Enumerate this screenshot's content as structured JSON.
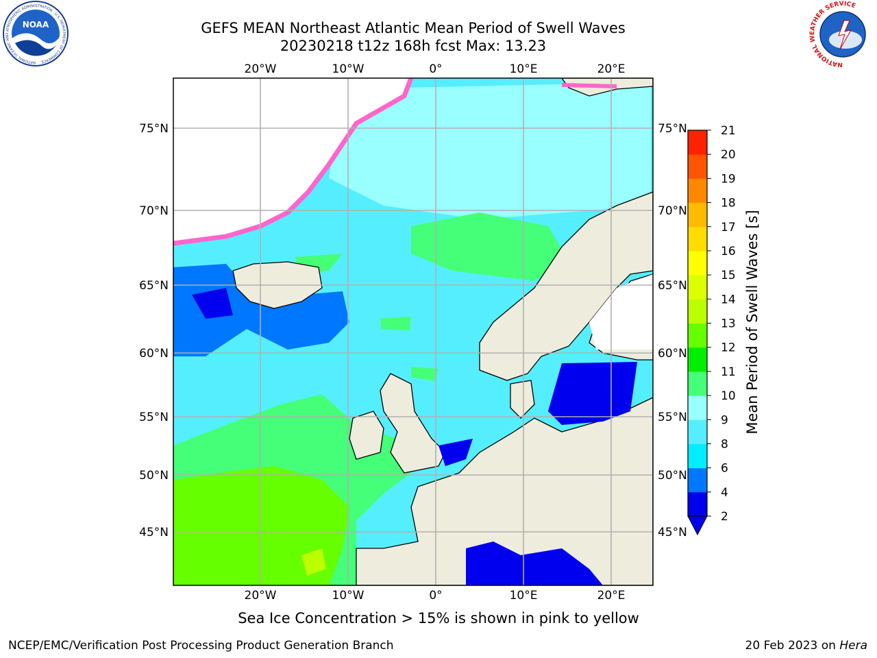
{
  "title": {
    "line1": "GEFS MEAN Northeast Atlantic Mean Period of Swell Waves",
    "line2": "20230218 t12z 168h fcst   Max: 13.23"
  },
  "logos": {
    "left": "NOAA",
    "left_ring": "NATIONAL OCEANIC AND ATMOSPHERIC ADMINISTRATION · U.S. DEPARTMENT OF COMMERCE",
    "right_ring": "NATIONAL WEATHER SERVICE"
  },
  "map": {
    "lon_labels": [
      "20°W",
      "10°W",
      "0°",
      "10°E",
      "20°E"
    ],
    "lat_labels": [
      "75°N",
      "70°N",
      "65°N",
      "60°N",
      "55°N",
      "50°N",
      "45°N"
    ],
    "projection_grid": "lat/lon gridlines",
    "land_color": "#eeecdc",
    "ice_color_scale": "pink to yellow"
  },
  "colorbar": {
    "label": "Mean Period of Swell Waves [s]",
    "ticks": [
      "2",
      "4",
      "6",
      "8",
      "9",
      "10",
      "11",
      "12",
      "13",
      "14",
      "15",
      "16",
      "17",
      "18",
      "19",
      "20",
      "21"
    ],
    "colors": [
      "#0000ee",
      "#0077ff",
      "#00eeff",
      "#55eeff",
      "#99ffff",
      "#44ff77",
      "#00ee00",
      "#66ff00",
      "#bbff00",
      "#ddff00",
      "#ffff00",
      "#ffdd00",
      "#ffbb00",
      "#ff8800",
      "#ff5500",
      "#ff2200"
    ],
    "extend": "min"
  },
  "footer": {
    "note": "Sea Ice Concentration > 15% is shown in pink to yellow",
    "credit": "NCEP/EMC/Verification Post Processing Product Generation Branch",
    "date": "20 Feb 2023 on",
    "host": "Hera"
  }
}
